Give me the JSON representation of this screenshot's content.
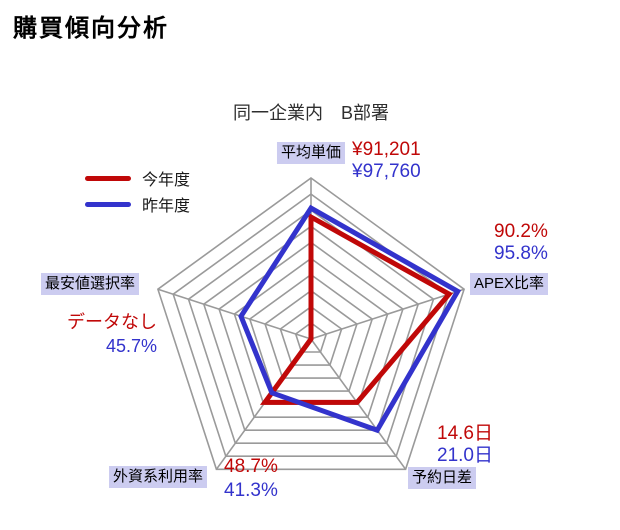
{
  "page": {
    "title": "購買傾向分析",
    "subtitle": "同一企業内　B部署"
  },
  "legend": {
    "items": [
      {
        "label": "今年度",
        "color": "#c00808"
      },
      {
        "label": "昨年度",
        "color": "#3333cc"
      }
    ]
  },
  "chart_data": {
    "type": "radar",
    "shape": "pentagon",
    "rings": 10,
    "grid_color": "#9a9a9a",
    "label_bg_color": "#ccccf0",
    "axes": [
      {
        "label": "平均単価",
        "this_year": "¥91,201",
        "last_year": "¥97,760"
      },
      {
        "label": "APEX比率",
        "this_year": "90.2%",
        "last_year": "95.8%"
      },
      {
        "label": "予約日差",
        "this_year": "14.6日",
        "last_year": "21.0日"
      },
      {
        "label": "外資系利用率",
        "this_year": "48.7%",
        "last_year": "41.3%"
      },
      {
        "label": "最安値選択率",
        "this_year": "データなし",
        "last_year": "45.7%"
      }
    ],
    "series": [
      {
        "name": "今年度",
        "color": "#c00808",
        "fractions": [
          0.758,
          0.902,
          0.487,
          0.487,
          0.0
        ],
        "note": "最安値選択率はデータなし(0)"
      },
      {
        "name": "昨年度",
        "color": "#3333cc",
        "fractions": [
          0.813,
          0.958,
          0.7,
          0.413,
          0.457
        ]
      }
    ]
  }
}
